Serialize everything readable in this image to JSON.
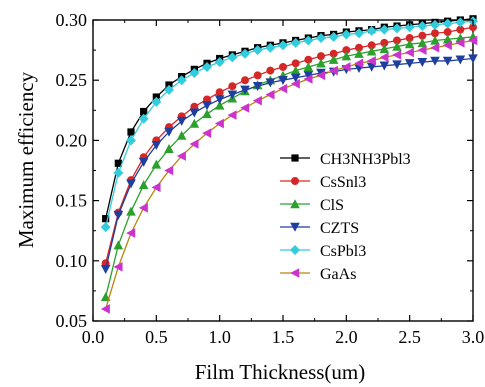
{
  "chart_data": {
    "type": "line",
    "xlabel": "Film Thickness(um)",
    "ylabel": "Maximum efficiency",
    "xlim": [
      0.0,
      3.0
    ],
    "ylim": [
      0.05,
      0.3
    ],
    "xticks": [
      "0.0",
      "0.5",
      "1.0",
      "1.5",
      "2.0",
      "2.5",
      "3.0"
    ],
    "yticks": [
      "0.05",
      "0.10",
      "0.15",
      "0.20",
      "0.25",
      "0.30"
    ],
    "grid": false,
    "legend_position": "center-right",
    "x": [
      0.1,
      0.2,
      0.3,
      0.4,
      0.5,
      0.6,
      0.7,
      0.8,
      0.9,
      1.0,
      1.1,
      1.2,
      1.3,
      1.4,
      1.5,
      1.6,
      1.7,
      1.8,
      1.9,
      2.0,
      2.1,
      2.2,
      2.3,
      2.4,
      2.5,
      2.6,
      2.7,
      2.8,
      2.9,
      3.0
    ],
    "series": [
      {
        "name": "CH3NH3Pbl3",
        "color": "#000000",
        "marker": "square",
        "values": [
          0.135,
          0.181,
          0.207,
          0.224,
          0.236,
          0.246,
          0.253,
          0.259,
          0.264,
          0.268,
          0.271,
          0.274,
          0.277,
          0.279,
          0.281,
          0.283,
          0.285,
          0.287,
          0.288,
          0.29,
          0.291,
          0.292,
          0.294,
          0.295,
          0.296,
          0.297,
          0.298,
          0.299,
          0.3,
          0.301
        ]
      },
      {
        "name": "CsSnl3",
        "color": "#d62728",
        "marker": "circle",
        "values": [
          0.098,
          0.14,
          0.167,
          0.186,
          0.2,
          0.211,
          0.22,
          0.228,
          0.234,
          0.24,
          0.245,
          0.25,
          0.254,
          0.258,
          0.261,
          0.264,
          0.267,
          0.27,
          0.272,
          0.275,
          0.277,
          0.279,
          0.281,
          0.283,
          0.285,
          0.287,
          0.289,
          0.29,
          0.292,
          0.294
        ]
      },
      {
        "name": "ClS",
        "color": "#2ca02c",
        "marker": "triangle-up",
        "values": [
          0.07,
          0.113,
          0.141,
          0.163,
          0.18,
          0.193,
          0.204,
          0.214,
          0.222,
          0.229,
          0.235,
          0.241,
          0.246,
          0.25,
          0.254,
          0.258,
          0.261,
          0.264,
          0.267,
          0.27,
          0.272,
          0.274,
          0.276,
          0.278,
          0.28,
          0.281,
          0.283,
          0.284,
          0.285,
          0.286
        ]
      },
      {
        "name": "CZTS",
        "color": "#1f3f9f",
        "marker": "triangle-down",
        "values": [
          0.093,
          0.138,
          0.164,
          0.182,
          0.196,
          0.207,
          0.216,
          0.223,
          0.229,
          0.234,
          0.238,
          0.242,
          0.245,
          0.248,
          0.25,
          0.252,
          0.254,
          0.256,
          0.257,
          0.259,
          0.26,
          0.261,
          0.262,
          0.263,
          0.264,
          0.265,
          0.266,
          0.266,
          0.267,
          0.268
        ]
      },
      {
        "name": "CsPbl3",
        "color": "#33ccdd",
        "marker": "diamond",
        "values": [
          0.128,
          0.173,
          0.2,
          0.218,
          0.232,
          0.242,
          0.25,
          0.256,
          0.261,
          0.265,
          0.269,
          0.272,
          0.275,
          0.277,
          0.279,
          0.281,
          0.283,
          0.285,
          0.286,
          0.288,
          0.289,
          0.291,
          0.292,
          0.293,
          0.294,
          0.295,
          0.296,
          0.297,
          0.298,
          0.299
        ]
      },
      {
        "name": "GaAs",
        "color": "#cc33cc",
        "marker": "triangle-left",
        "lineColor": "#b8860b",
        "values": [
          0.06,
          0.095,
          0.123,
          0.144,
          0.161,
          0.175,
          0.187,
          0.197,
          0.206,
          0.214,
          0.221,
          0.227,
          0.233,
          0.238,
          0.243,
          0.247,
          0.251,
          0.254,
          0.258,
          0.261,
          0.264,
          0.266,
          0.269,
          0.271,
          0.273,
          0.275,
          0.277,
          0.279,
          0.281,
          0.283
        ]
      }
    ]
  }
}
